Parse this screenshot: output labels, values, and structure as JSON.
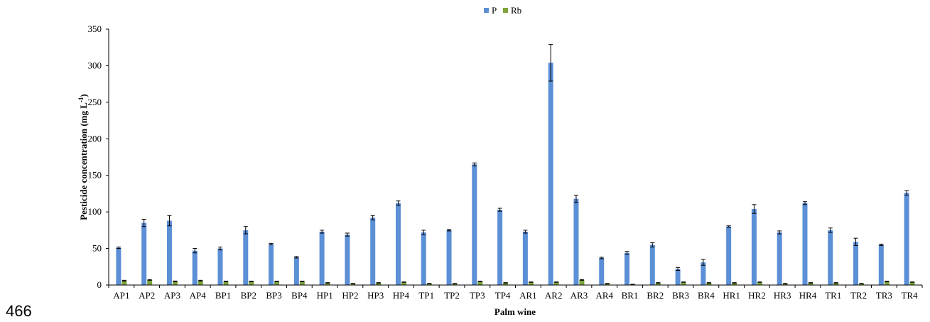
{
  "page_number": "466",
  "chart_data": {
    "type": "bar",
    "xlabel": "Palm wine",
    "ylabel_main": "Pesticide concentration (mg L",
    "ylabel_sup": "-1",
    "ylabel_close": ")",
    "ylim": [
      0,
      350
    ],
    "yticks": [
      0,
      50,
      100,
      150,
      200,
      250,
      300,
      350
    ],
    "legend_position": "top-center",
    "categories": [
      "AP1",
      "AP2",
      "AP3",
      "AP4",
      "BP1",
      "BP2",
      "BP3",
      "BP4",
      "HP1",
      "HP2",
      "HP3",
      "HP4",
      "TP1",
      "TP2",
      "TP3",
      "TP4",
      "AR1",
      "AR2",
      "AR3",
      "AR4",
      "BR1",
      "BR2",
      "BR3",
      "BR4",
      "HR1",
      "HR2",
      "HR3",
      "HR4",
      "TR1",
      "TR2",
      "TR3",
      "TR4"
    ],
    "series": [
      {
        "name": "P",
        "color": "#5B8FD6",
        "values": [
          51,
          85,
          88,
          47,
          50,
          75,
          56,
          38,
          73,
          69,
          92,
          112,
          72,
          75,
          165,
          103,
          73,
          304,
          118,
          37,
          44,
          55,
          22,
          31,
          80,
          104,
          72,
          112,
          75,
          59,
          55,
          126
        ],
        "errors": [
          1,
          5,
          7,
          3,
          2,
          5,
          1,
          1,
          2,
          2,
          3,
          3,
          3,
          1,
          2,
          2,
          2,
          25,
          5,
          1,
          2,
          3,
          2,
          4,
          1,
          6,
          2,
          2,
          3,
          5,
          1,
          3
        ]
      },
      {
        "name": "Rb",
        "color": "#7DA33B",
        "values": [
          6,
          7,
          5,
          6,
          5,
          5,
          5,
          5,
          3,
          2,
          3,
          4,
          2,
          2,
          5,
          3,
          4,
          4,
          7,
          2,
          1,
          3,
          4,
          3,
          3,
          4,
          2,
          3,
          3,
          2,
          5,
          4
        ],
        "errors": [
          0.5,
          0.5,
          0.5,
          0.5,
          0.4,
          0.4,
          0.4,
          0.4,
          0.3,
          0.2,
          0.3,
          0.3,
          0.2,
          0.2,
          0.4,
          0.3,
          0.3,
          0.3,
          0.5,
          0.2,
          0.1,
          0.3,
          0.3,
          0.3,
          0.3,
          0.3,
          0.2,
          0.3,
          0.3,
          0.2,
          0.4,
          0.3
        ]
      }
    ]
  }
}
